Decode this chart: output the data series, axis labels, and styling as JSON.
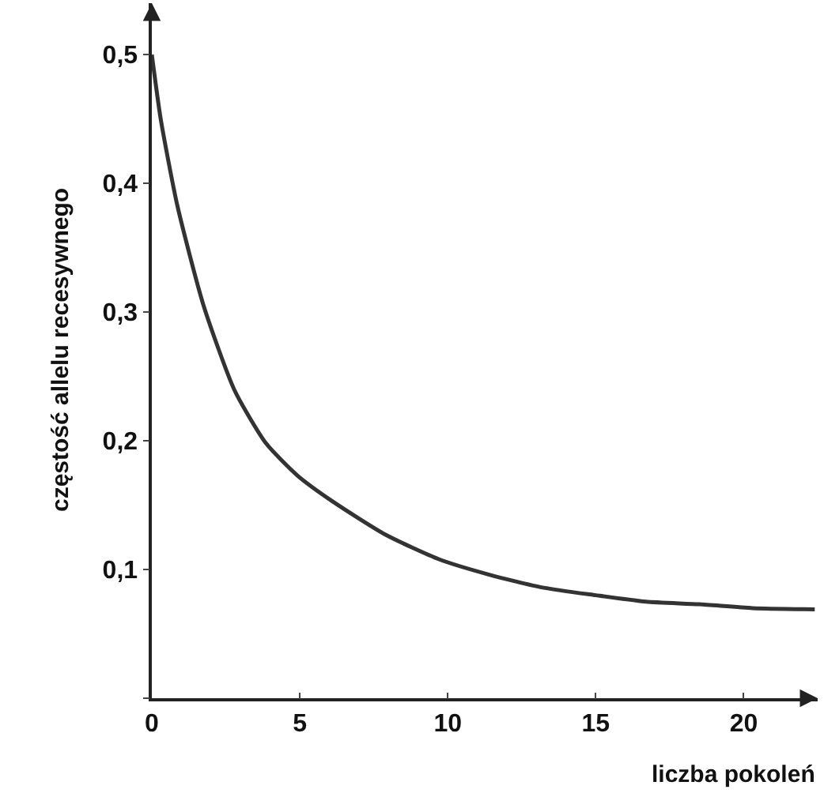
{
  "chart_data": {
    "type": "line",
    "xlabel": "liczba pokoleń",
    "ylabel": "częstość allelu recesywnego",
    "x": [
      0,
      0.3,
      0.86,
      1.75,
      2.8,
      3.86,
      4.92,
      6.1,
      7.9,
      9.7,
      11.4,
      13.2,
      15.0,
      16.7,
      18.5,
      20.3,
      22.4
    ],
    "series": [
      {
        "color": "#333333",
        "values": [
          0.5,
          0.45,
          0.383,
          0.305,
          0.239,
          0.198,
          0.173,
          0.153,
          0.127,
          0.108,
          0.096,
          0.086,
          0.08,
          0.075,
          0.073,
          0.07,
          0.069
        ]
      }
    ],
    "xlim": [
      0,
      22.5
    ],
    "ylim": [
      0,
      0.54
    ],
    "xticks": [
      0,
      5,
      10,
      15,
      20
    ],
    "yticks": [
      {
        "value": 0,
        "label": null
      },
      {
        "value": 0.1,
        "label": "0,1"
      },
      {
        "value": 0.2,
        "label": "0,2"
      },
      {
        "value": 0.3,
        "label": "0,3"
      },
      {
        "value": 0.4,
        "label": "0,4"
      },
      {
        "value": 0.5,
        "label": "0,5"
      }
    ],
    "legend": false,
    "marker": "none",
    "line_style": "solid"
  }
}
